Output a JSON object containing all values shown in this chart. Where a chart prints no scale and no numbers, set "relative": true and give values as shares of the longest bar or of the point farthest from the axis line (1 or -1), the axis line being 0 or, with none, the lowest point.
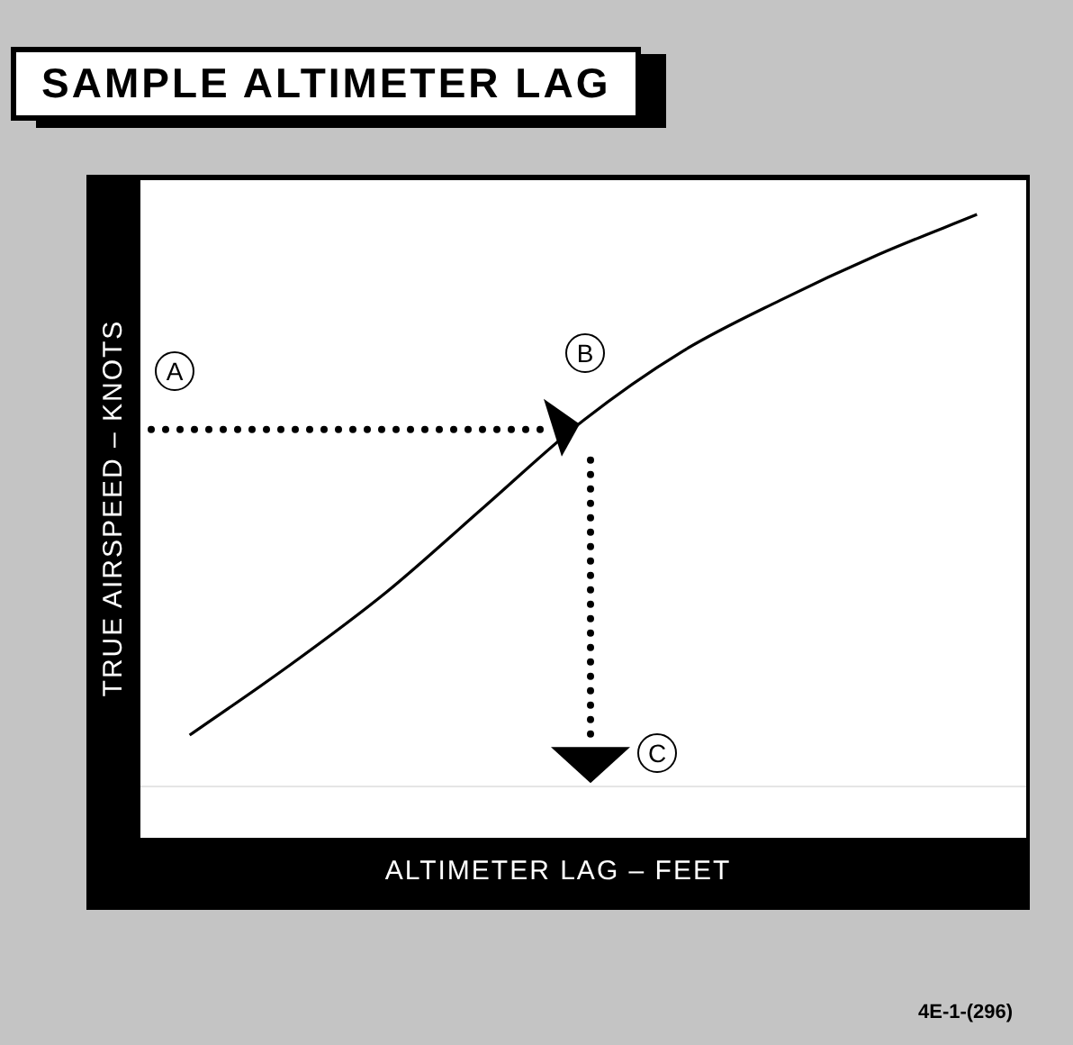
{
  "chart_data": {
    "type": "line",
    "title": "SAMPLE ALTIMETER LAG",
    "xlabel": "ALTIMETER LAG – FEET",
    "ylabel": "TRUE AIRSPEED – KNOTS",
    "relative": true,
    "marker": "none",
    "legend": false,
    "categories": [
      null,
      null,
      null,
      null,
      null,
      null,
      null,
      null,
      null
    ],
    "series": [
      {
        "color": "#000000",
        "values": [
          0.09,
          0.21,
          0.34,
          0.49,
          0.64,
          0.76,
          0.85,
          0.93,
          1.0
        ]
      }
    ],
    "annotations": [
      "A",
      "B",
      "C",
      "4E-1-(296)"
    ]
  }
}
